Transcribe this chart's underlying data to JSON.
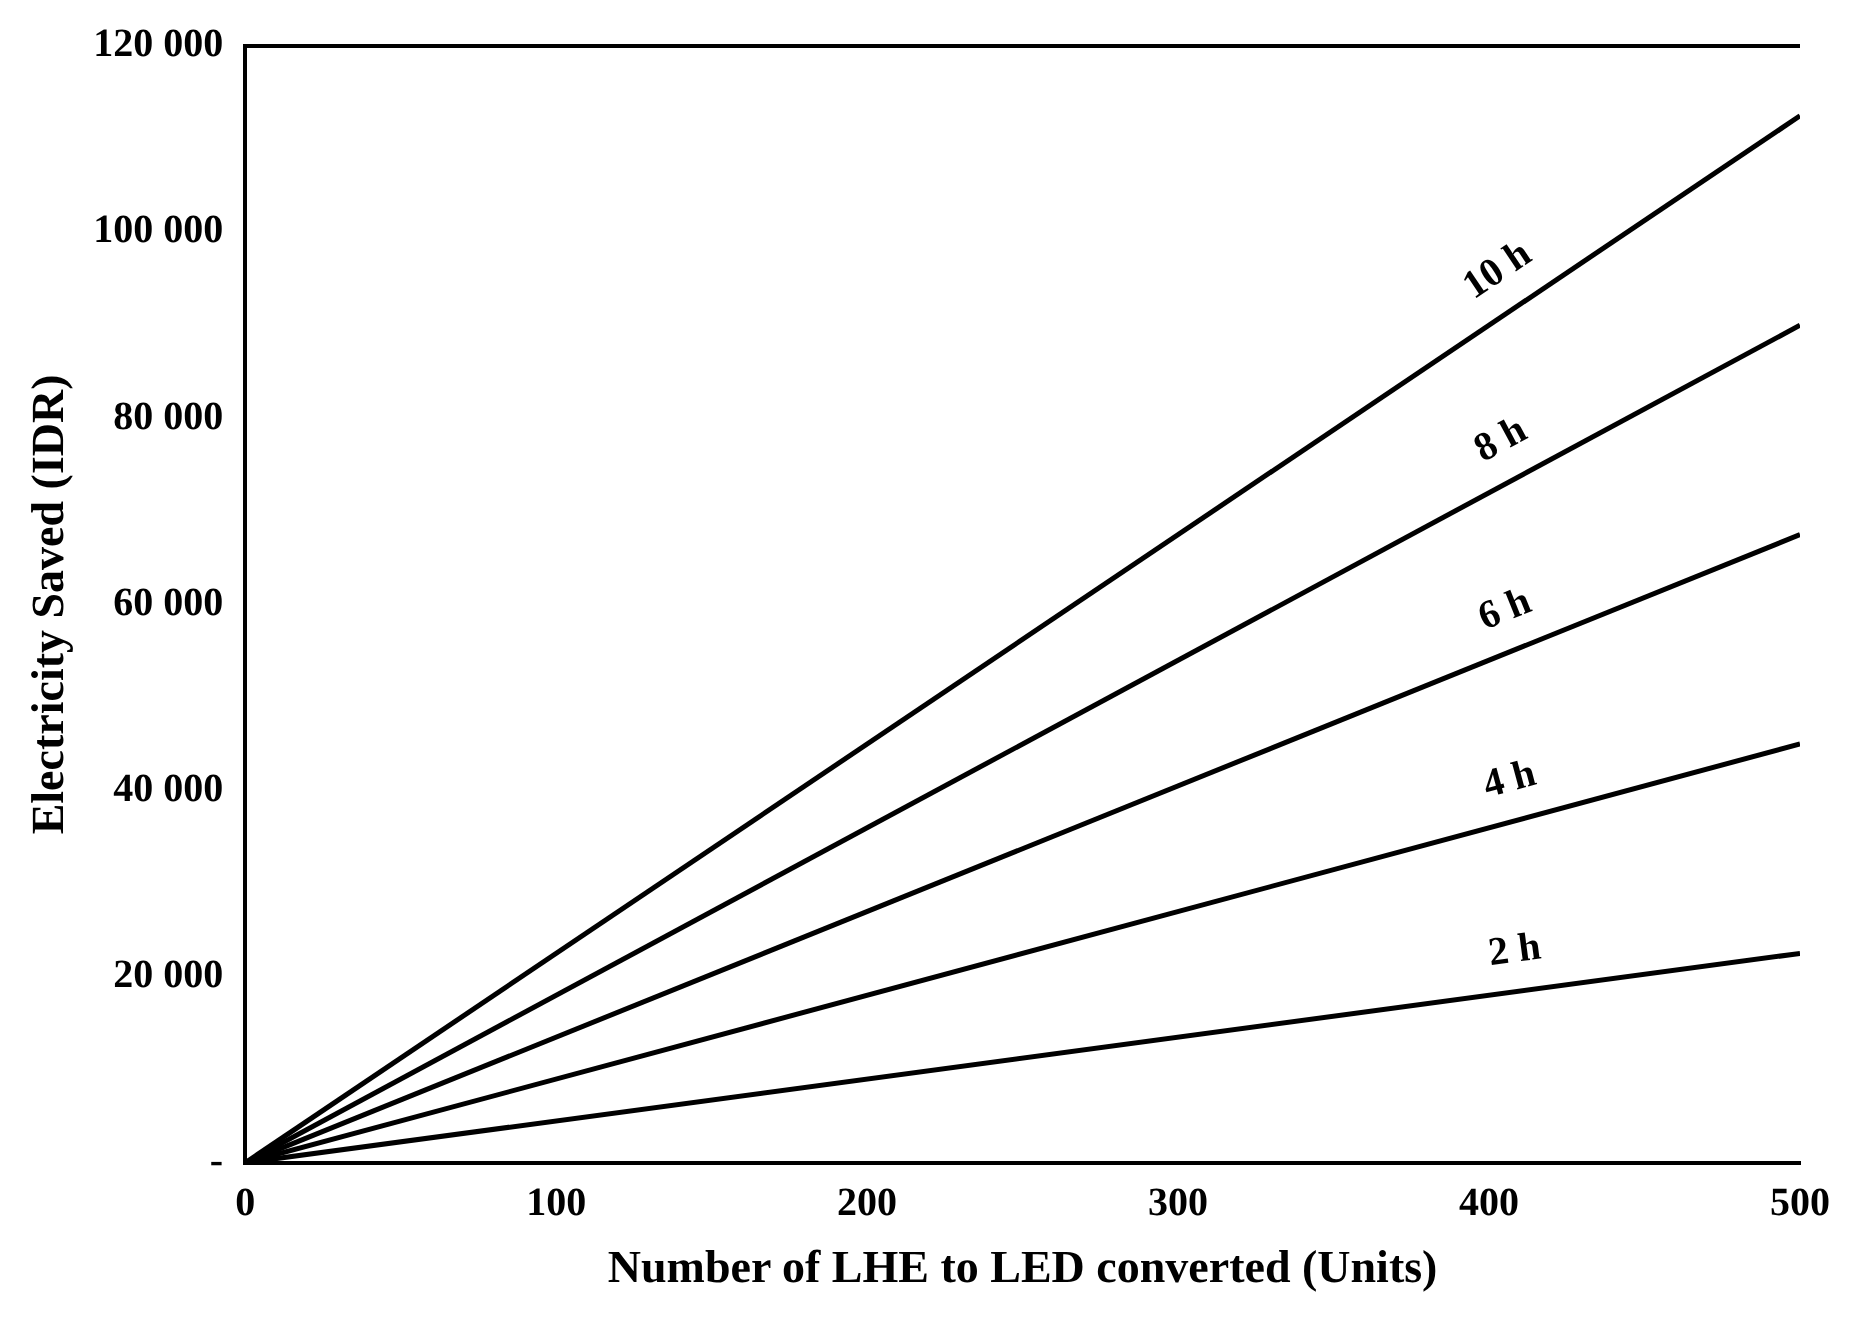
{
  "chart_data": {
    "type": "line",
    "xlabel": "Number of LHE to LED converted (Units)",
    "ylabel": "Electricity Saved (IDR)",
    "x": [
      0,
      500
    ],
    "series": [
      {
        "name": "2 h",
        "color": "#000000",
        "values": [
          0,
          22500
        ]
      },
      {
        "name": "4 h",
        "color": "#000000",
        "values": [
          0,
          45000
        ]
      },
      {
        "name": "6 h",
        "color": "#000000",
        "values": [
          0,
          67500
        ]
      },
      {
        "name": "8 h",
        "color": "#000000",
        "values": [
          0,
          90000
        ]
      },
      {
        "name": "10 h",
        "color": "#000000",
        "values": [
          0,
          112500
        ]
      }
    ],
    "xlim": [
      0,
      500
    ],
    "xticks": [
      0,
      100,
      200,
      300,
      400,
      500
    ],
    "ylim": [
      0,
      120000
    ],
    "yticks": [
      {
        "value": 0,
        "label": "-"
      },
      {
        "value": 20000,
        "label": "20 000"
      },
      {
        "value": 40000,
        "label": "40 000"
      },
      {
        "value": 60000,
        "label": "60 000"
      },
      {
        "value": 80000,
        "label": "80 000"
      },
      {
        "value": 100000,
        "label": "100 000"
      },
      {
        "value": 120000,
        "label": "120 000"
      }
    ],
    "grid": false,
    "legend": false,
    "marker": "none",
    "line_style": "solid"
  }
}
